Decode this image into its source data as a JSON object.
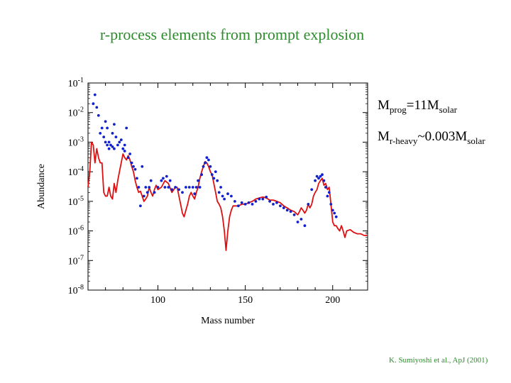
{
  "slide": {
    "title": "r-process elements from prompt explosion",
    "citation": "K. Sumiyoshi et al., ApJ (2001)",
    "annotations": {
      "line1": {
        "main": "M",
        "sub": "prog",
        "mid": "=11M",
        "sub2": "solar"
      },
      "line2": {
        "main": "M",
        "sub": "r-heavy",
        "mid": "~0.003M",
        "sub2": "solar"
      }
    }
  },
  "chart_data": {
    "type": "line+scatter",
    "xlabel": "Mass number",
    "ylabel": "Abundance",
    "xlim": [
      60,
      220
    ],
    "ylim_log10": [
      -8,
      -1
    ],
    "y_scale": "log",
    "x_ticks": [
      100,
      150,
      200
    ],
    "y_tick_base": "10",
    "y_tick_exponents": [
      "-1",
      "-2",
      "-3",
      "-4",
      "-5",
      "-6",
      "-7",
      "-8"
    ],
    "colors": {
      "line": "#dd1111",
      "points": "#1122cc"
    },
    "series": [
      {
        "kind": "line",
        "x": [
          60,
          61,
          62,
          63,
          64,
          65,
          66,
          67,
          68,
          69,
          70,
          71,
          72,
          73,
          74,
          75,
          76,
          77,
          78,
          79,
          80,
          81,
          82,
          83,
          84,
          85,
          86,
          87,
          88,
          89,
          90,
          91,
          92,
          93,
          94,
          95,
          96,
          97,
          98,
          99,
          100,
          102,
          104,
          106,
          108,
          110,
          111,
          112,
          113,
          114,
          115,
          116,
          117,
          118,
          119,
          120,
          121,
          122,
          123,
          124,
          125,
          126,
          127,
          128,
          129,
          130,
          131,
          132,
          133,
          134,
          135,
          136,
          137,
          138,
          139,
          140,
          141,
          142,
          143,
          144,
          146,
          148,
          150,
          152,
          154,
          156,
          158,
          160,
          162,
          164,
          166,
          168,
          170,
          172,
          174,
          176,
          178,
          180,
          181,
          182,
          183,
          184,
          185,
          186,
          187,
          188,
          189,
          190,
          191,
          192,
          193,
          194,
          195,
          196,
          197,
          198,
          199,
          200,
          201,
          202,
          203,
          204,
          205,
          206,
          207,
          208,
          210,
          212,
          214,
          216,
          218,
          220
        ],
        "y": [
          3e-05,
          0.0001,
          0.001,
          0.0008,
          0.0002,
          0.0006,
          0.0003,
          0.0002,
          0.0002,
          2e-05,
          1.5e-05,
          1.5e-05,
          3e-05,
          1.5e-05,
          1.2e-05,
          4e-05,
          2e-05,
          5e-05,
          0.0001,
          0.0002,
          0.0004,
          0.0003,
          0.00025,
          0.00035,
          0.00025,
          0.00015,
          0.0001,
          5e-05,
          3e-05,
          2e-05,
          2.2e-05,
          1.5e-05,
          1e-05,
          1.2e-05,
          1.5e-05,
          3e-05,
          2e-05,
          1.5e-05,
          2.5e-05,
          3.5e-05,
          2.5e-05,
          3e-05,
          5e-05,
          4e-05,
          2e-05,
          3e-05,
          3e-05,
          1.5e-05,
          8e-06,
          4e-06,
          3e-06,
          5e-06,
          8e-06,
          1.5e-05,
          2e-05,
          1.5e-05,
          1.2e-05,
          2e-05,
          3e-05,
          6e-05,
          0.0001,
          0.00015,
          0.00022,
          0.0002,
          0.00015,
          0.0001,
          8e-05,
          4e-05,
          2e-05,
          1e-05,
          8e-06,
          6e-06,
          3e-06,
          1e-06,
          2.2e-07,
          1e-06,
          3e-06,
          5e-06,
          7e-06,
          7e-06,
          7e-06,
          8e-06,
          8e-06,
          9e-06,
          1e-05,
          1.2e-05,
          1.3e-05,
          1.4e-05,
          1.3e-05,
          1.1e-05,
          1.1e-05,
          1e-05,
          9e-06,
          7e-06,
          6e-06,
          5e-06,
          4.5e-06,
          3.5e-06,
          4.5e-06,
          6e-06,
          5e-06,
          4e-06,
          5e-06,
          8e-06,
          6e-06,
          8e-06,
          1.5e-05,
          2e-05,
          2.5e-05,
          4e-05,
          5e-05,
          6e-05,
          3.5e-05,
          4e-05,
          2.5e-05,
          3e-05,
          8e-06,
          2e-06,
          1.5e-06,
          1.5e-06,
          1.2e-06,
          1e-06,
          1.5e-06,
          1e-06,
          6e-07,
          1e-06,
          1.1e-06,
          9e-07,
          8e-07,
          8e-07,
          7e-07,
          7e-07
        ]
      },
      {
        "kind": "scatter",
        "x": [
          63,
          64,
          65,
          66,
          67,
          68,
          69,
          70,
          70,
          71,
          71,
          72,
          72,
          73,
          74,
          74,
          75,
          75,
          76,
          77,
          78,
          79,
          80,
          81,
          81,
          82,
          83,
          84,
          85,
          86,
          87,
          88,
          89,
          90,
          91,
          92,
          93,
          94,
          95,
          96,
          98,
          100,
          102,
          103,
          104,
          105,
          106,
          107,
          108,
          110,
          112,
          114,
          116,
          118,
          120,
          121,
          122,
          123,
          124,
          125,
          126,
          127,
          128,
          129,
          130,
          131,
          132,
          133,
          134,
          135,
          136,
          137,
          138,
          140,
          142,
          144,
          146,
          148,
          150,
          152,
          154,
          156,
          158,
          160,
          162,
          164,
          166,
          168,
          170,
          172,
          174,
          176,
          178,
          180,
          182,
          184,
          186,
          188,
          190,
          191,
          192,
          193,
          194,
          195,
          196,
          197,
          198,
          199,
          200,
          201,
          202
        ],
        "y": [
          0.02,
          0.04,
          0.015,
          0.008,
          0.002,
          0.003,
          0.0015,
          0.001,
          0.005,
          0.0008,
          0.003,
          0.001,
          0.0006,
          0.0008,
          0.002,
          0.0007,
          0.004,
          0.0006,
          0.0015,
          0.0008,
          0.001,
          0.0012,
          0.0006,
          0.0008,
          0.0005,
          0.003,
          0.0003,
          0.0004,
          0.0002,
          0.00015,
          0.00012,
          6e-05,
          3e-05,
          7e-06,
          0.00015,
          1.5e-05,
          3e-05,
          2e-05,
          3e-05,
          5e-05,
          2e-05,
          3e-05,
          5e-05,
          6e-05,
          3e-05,
          7e-05,
          3e-05,
          5e-05,
          2.5e-05,
          3e-05,
          2.5e-05,
          2e-05,
          3e-05,
          3e-05,
          3e-05,
          1.8e-05,
          3e-05,
          5e-05,
          3e-05,
          8e-05,
          0.00015,
          0.0002,
          0.0003,
          0.00025,
          0.00015,
          8e-05,
          6e-05,
          0.0001,
          5e-05,
          2e-05,
          3e-05,
          1.5e-05,
          1.2e-05,
          1.8e-05,
          1.5e-05,
          1e-05,
          7e-06,
          9e-06,
          8e-06,
          9e-06,
          8e-06,
          1e-05,
          1.2e-05,
          1.2e-05,
          1.4e-05,
          1e-05,
          8e-06,
          9e-06,
          7e-06,
          6e-06,
          5e-06,
          4.5e-06,
          3.5e-06,
          2e-06,
          2.5e-06,
          1.5e-06,
          8e-06,
          2.5e-05,
          5e-05,
          7e-05,
          6e-05,
          7e-05,
          8e-05,
          5e-05,
          3e-05,
          1.5e-05,
          2e-05,
          8e-06,
          5e-06,
          4e-06,
          3e-06
        ]
      }
    ]
  }
}
